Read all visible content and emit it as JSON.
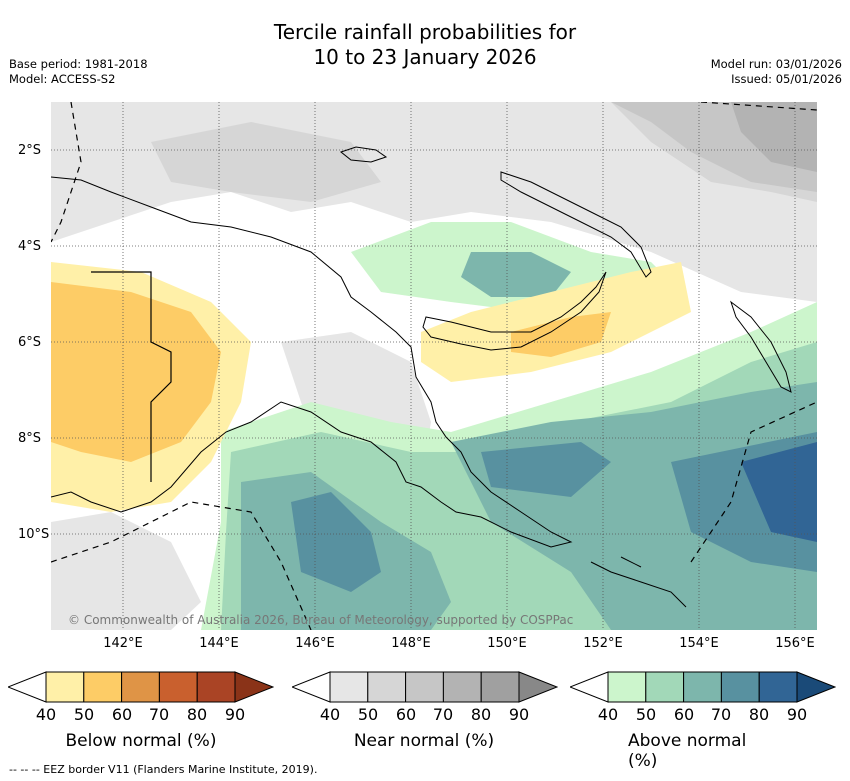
{
  "title": {
    "line1": "Tercile rainfall probabilities for",
    "line2": "10 to 23 January 2026"
  },
  "meta": {
    "base_period": "Base period: 1981-2018",
    "model": "Model: ACCESS-S2",
    "model_run": "Model run: 03/01/2026",
    "issued": "Issued: 05/01/2026"
  },
  "map": {
    "copyright": "© Commonwealth of Australia 2026, Bureau of Meteorology, supported by COSPPac",
    "lat_labels": [
      "2°S",
      "4°S",
      "6°S",
      "8°S",
      "10°S"
    ],
    "lon_labels": [
      "142°E",
      "144°E",
      "146°E",
      "148°E",
      "150°E",
      "152°E",
      "154°E",
      "156°E"
    ]
  },
  "legends": {
    "below": {
      "title": "Below normal (%)",
      "ticks": [
        "40",
        "50",
        "60",
        "70",
        "80",
        "90"
      ],
      "colors": [
        "#fff0a8",
        "#fdcc66",
        "#df9446",
        "#c9602e",
        "#aa4425",
        "#8a3318"
      ]
    },
    "near": {
      "title": "Near normal (%)",
      "ticks": [
        "40",
        "50",
        "60",
        "70",
        "80",
        "90"
      ],
      "colors": [
        "#e6e6e6",
        "#d6d6d6",
        "#c6c6c6",
        "#b3b3b3",
        "#a0a0a0",
        "#888888"
      ]
    },
    "above": {
      "title": "Above normal (%)",
      "ticks": [
        "40",
        "50",
        "60",
        "70",
        "80",
        "90"
      ],
      "colors": [
        "#ccf5cc",
        "#a2d8b8",
        "#7db6ac",
        "#5891a0",
        "#316595",
        "#1a4a78"
      ]
    }
  },
  "footer": "-- -- -- EEZ border V11 (Flanders Marine Institute, 2019)."
}
